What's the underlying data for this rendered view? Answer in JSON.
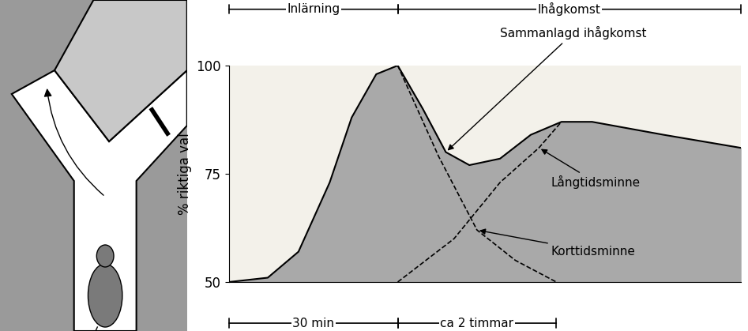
{
  "chart_data": {
    "type": "area",
    "y_label": "% riktiga val",
    "xlim": [
      0,
      100
    ],
    "xticks": [],
    "ylim": [
      50,
      100
    ],
    "yticks": [
      50,
      75,
      100
    ],
    "tick_labels": "y",
    "series": [
      {
        "name": "Sammanlagd ihågkomst",
        "type": "area",
        "color": "#a9a9a9",
        "line_style": "solid",
        "x": [
          0,
          7.6,
          13.6,
          19.7,
          24,
          28.8,
          33,
          37.9,
          42.4,
          47,
          53,
          59,
          65,
          71,
          85,
          100
        ],
        "values": [
          50,
          51,
          57,
          73,
          88,
          98,
          100,
          90,
          80,
          77,
          78.5,
          84,
          87,
          87,
          84,
          81
        ]
      },
      {
        "name": "Korttidsminne",
        "type": "line",
        "color": "#000000",
        "line_style": "dashed",
        "x": [
          33,
          41,
          48.5,
          56,
          64
        ],
        "values": [
          100,
          79,
          62,
          55,
          50
        ]
      },
      {
        "name": "Långtidsminne",
        "type": "line",
        "color": "#000000",
        "line_style": "dashed",
        "x": [
          33,
          44,
          53,
          60.6,
          65
        ],
        "values": [
          50,
          60,
          73,
          81,
          87
        ]
      }
    ],
    "phases": [
      {
        "label": "Inlärning",
        "from": 0,
        "to": 33
      },
      {
        "label": "Ihågkomst",
        "from": 33,
        "to": 100
      }
    ],
    "durations": [
      {
        "label": "30 min",
        "from": 0,
        "to": 33
      },
      {
        "label": "ca 2 timmar",
        "from": 33,
        "to": 64
      }
    ]
  }
}
